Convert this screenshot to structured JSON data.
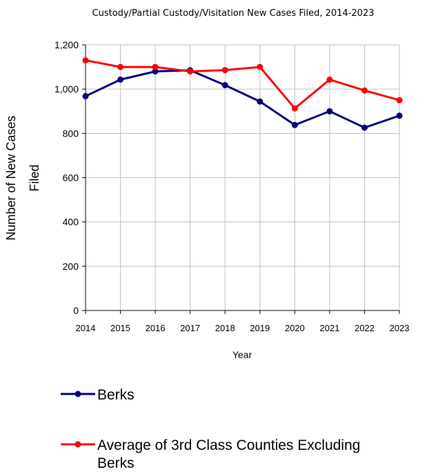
{
  "chart_data": {
    "type": "line",
    "title": "Custody/Partial Custody/Visitation New Cases Filed, 2014-2023",
    "xlabel": "Year",
    "ylabel_line1": "Number of New Cases",
    "ylabel_line2": "Filed",
    "categories": [
      "2014",
      "2015",
      "2016",
      "2017",
      "2018",
      "2019",
      "2020",
      "2021",
      "2022",
      "2023"
    ],
    "ylim": [
      0,
      1200
    ],
    "yticks": [
      0,
      200,
      400,
      600,
      800,
      1000,
      1200
    ],
    "ytick_labels": [
      "0",
      "200",
      "400",
      "600",
      "800",
      "1,000",
      "1,200"
    ],
    "grid": true,
    "legend_position": "bottom",
    "series": [
      {
        "name": "Berks",
        "color": "#000080",
        "values": [
          968,
          1043,
          1080,
          1085,
          1018,
          944,
          838,
          900,
          826,
          880
        ]
      },
      {
        "name": "Average of 3rd Class Counties Excluding Berks",
        "color": "#ff0000",
        "values": [
          1130,
          1100,
          1100,
          1080,
          1086,
          1100,
          913,
          1043,
          994,
          950
        ]
      }
    ]
  }
}
